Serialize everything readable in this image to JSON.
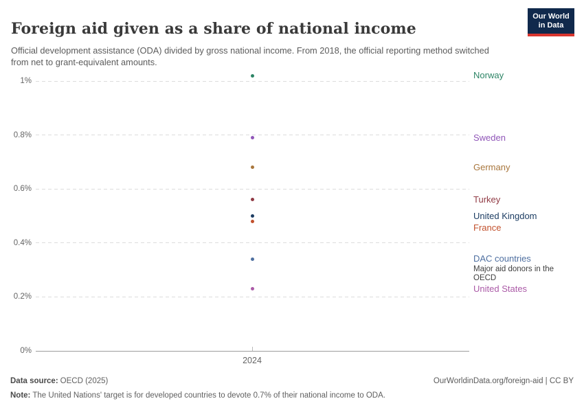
{
  "header": {
    "title": "Foreign aid given as a share of national income",
    "subtitle": "Official development assistance (ODA) divided by gross national income. From 2018, the official reporting method switched from net to grant-equivalent amounts."
  },
  "logo": {
    "line1": "Our World",
    "line2": "in Data",
    "bg": "#10294C",
    "accent": "#D8352E"
  },
  "chart_data": {
    "type": "scatter",
    "title": "Foreign aid given as a share of national income",
    "xlabel": "",
    "ylabel": "",
    "ylim": [
      0,
      1.05
    ],
    "grid": "horizontal-dashed",
    "legend_position": "right-of-points",
    "xticks": [
      {
        "label": "2024",
        "value": 2024
      }
    ],
    "yticks": [
      {
        "value": 0,
        "label": "0%"
      },
      {
        "value": 0.2,
        "label": "0.2%"
      },
      {
        "value": 0.4,
        "label": "0.4%"
      },
      {
        "value": 0.6,
        "label": "0.6%"
      },
      {
        "value": 0.8,
        "label": "0.8%"
      },
      {
        "value": 1,
        "label": "1%"
      }
    ],
    "series": [
      {
        "name": "Norway",
        "year": 2024,
        "value": 1.02,
        "color": "#2C8465"
      },
      {
        "name": "Sweden",
        "year": 2024,
        "value": 0.79,
        "color": "#9056B8"
      },
      {
        "name": "Germany",
        "year": 2024,
        "value": 0.68,
        "color": "#A8763C"
      },
      {
        "name": "Turkey",
        "year": 2024,
        "value": 0.56,
        "color": "#903A44"
      },
      {
        "name": "United Kingdom",
        "year": 2024,
        "value": 0.5,
        "color": "#1D3D63"
      },
      {
        "name": "France",
        "year": 2024,
        "value": 0.48,
        "color": "#C2512D"
      },
      {
        "name": "DAC countries",
        "year": 2024,
        "value": 0.34,
        "color": "#4E6FA0",
        "sublabel": "Major aid donors in the OECD"
      },
      {
        "name": "United States",
        "year": 2024,
        "value": 0.23,
        "color": "#AB5AA7"
      }
    ]
  },
  "footer": {
    "source_label": "Data source:",
    "source_value": "OECD (2025)",
    "credit": "OurWorldinData.org/foreign-aid | CC BY",
    "note_label": "Note:",
    "note_value": "The United Nations' target is for developed countries to devote 0.7% of their national income to ODA."
  }
}
